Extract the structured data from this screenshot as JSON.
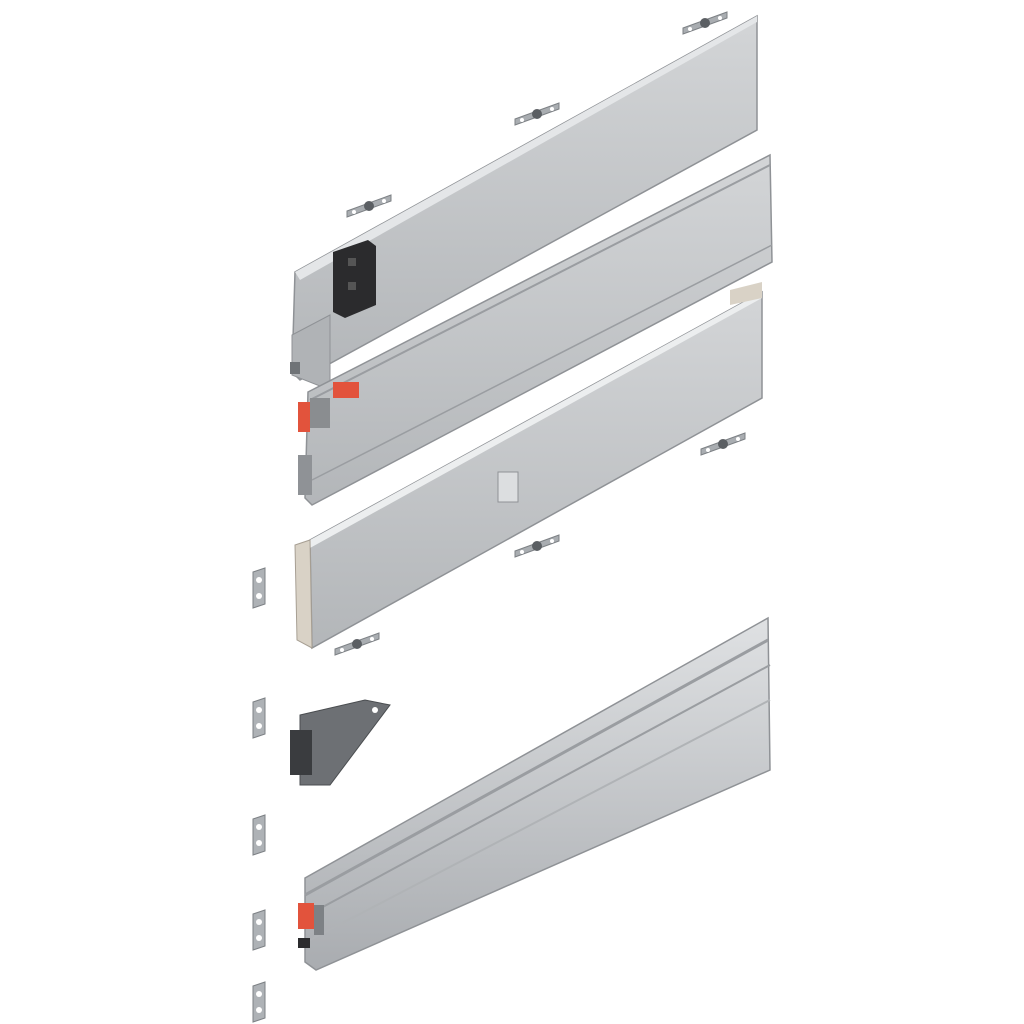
{
  "colors": {
    "background": "#ffffff",
    "panel_face": "#b9bcbf",
    "panel_light": "#d3d5d7",
    "panel_dark": "#8f9296",
    "rail": "#c3c6c9",
    "clip": "#a9adb1",
    "locking_device": "#2b2b2d",
    "accent_red": "#e2533c",
    "bracket": "#6d7074",
    "front_cap": "#d9d2c6"
  }
}
